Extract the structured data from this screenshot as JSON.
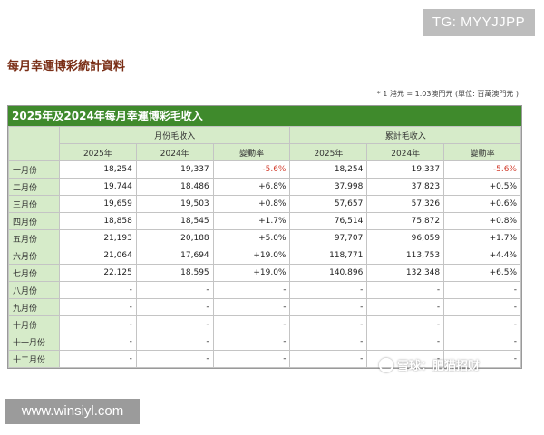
{
  "badge": {
    "text": "TG: MYYJJPP"
  },
  "page_title": "每月幸運博彩統計資料",
  "note": "* 1 港元 = 1.03澳門元 (單位: 百萬澳門元 )",
  "table": {
    "caption": "2025年及2024年每月幸運博彩毛收入",
    "groups": [
      "月份毛收入",
      "累計毛收入"
    ],
    "subheaders": [
      "2025年",
      "2024年",
      "變動率",
      "2025年",
      "2024年",
      "變動率"
    ],
    "rows": [
      {
        "month": "一月份",
        "cells": [
          "18,254",
          "19,337",
          "-5.6%",
          "18,254",
          "19,337",
          "-5.6%"
        ]
      },
      {
        "month": "二月份",
        "cells": [
          "19,744",
          "18,486",
          "+6.8%",
          "37,998",
          "37,823",
          "+0.5%"
        ]
      },
      {
        "month": "三月份",
        "cells": [
          "19,659",
          "19,503",
          "+0.8%",
          "57,657",
          "57,326",
          "+0.6%"
        ]
      },
      {
        "month": "四月份",
        "cells": [
          "18,858",
          "18,545",
          "+1.7%",
          "76,514",
          "75,872",
          "+0.8%"
        ]
      },
      {
        "month": "五月份",
        "cells": [
          "21,193",
          "20,188",
          "+5.0%",
          "97,707",
          "96,059",
          "+1.7%"
        ]
      },
      {
        "month": "六月份",
        "cells": [
          "21,064",
          "17,694",
          "+19.0%",
          "118,771",
          "113,753",
          "+4.4%"
        ]
      },
      {
        "month": "七月份",
        "cells": [
          "22,125",
          "18,595",
          "+19.0%",
          "140,896",
          "132,348",
          "+6.5%"
        ]
      },
      {
        "month": "八月份",
        "cells": [
          "-",
          "-",
          "-",
          "-",
          "-",
          "-"
        ]
      },
      {
        "month": "九月份",
        "cells": [
          "-",
          "-",
          "-",
          "-",
          "-",
          "-"
        ]
      },
      {
        "month": "十月份",
        "cells": [
          "-",
          "-",
          "-",
          "-",
          "-",
          "-"
        ]
      },
      {
        "month": "十一月份",
        "cells": [
          "-",
          "-",
          "-",
          "-",
          "-",
          "-"
        ]
      },
      {
        "month": "十二月份",
        "cells": [
          "-",
          "-",
          "-",
          "-",
          "-",
          "-"
        ]
      }
    ]
  },
  "sticker": {
    "text": "www.winsiyl.com"
  },
  "watermark": {
    "text": "雪球：肥猫招财"
  },
  "colors": {
    "header_green": "#3f8a2c",
    "light_green": "#d6ebc9",
    "negative": "#d23a2a",
    "title": "#7a2e16"
  }
}
